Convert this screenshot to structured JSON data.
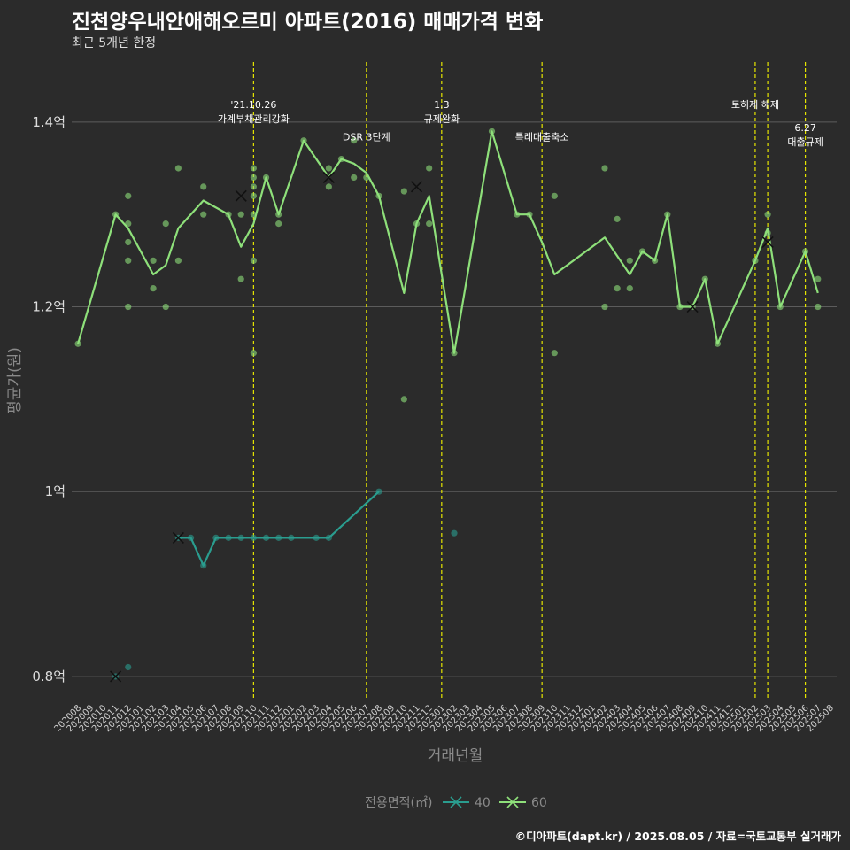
{
  "header": {
    "title": "진천양우내안애해오르미 아파트(2016) 매매가격 변화",
    "subtitle": "최근 5개년 한정"
  },
  "footer": {
    "caption": "©디아파트(dapt.kr) / 2025.08.05 / 자료=국토교통부 실거래가"
  },
  "chart_data": {
    "type": "line",
    "xlabel": "거래년월",
    "ylabel": "평균가(원)",
    "ylim": [
      0.775,
      1.465
    ],
    "yticks": [
      {
        "value": 0.8,
        "label": "0.8억"
      },
      {
        "value": 1.0,
        "label": "1억"
      },
      {
        "value": 1.2,
        "label": "1.2억"
      },
      {
        "value": 1.4,
        "label": "1.4억"
      }
    ],
    "x_categories": [
      "202008",
      "202009",
      "202010",
      "202011",
      "202012",
      "202101",
      "202102",
      "202103",
      "202104",
      "202105",
      "202106",
      "202107",
      "202108",
      "202109",
      "202110",
      "202111",
      "202112",
      "202201",
      "202202",
      "202203",
      "202204",
      "202205",
      "202206",
      "202207",
      "202208",
      "202209",
      "202210",
      "202211",
      "202212",
      "202301",
      "202302",
      "202303",
      "202304",
      "202305",
      "202306",
      "202307",
      "202308",
      "202309",
      "202310",
      "202311",
      "202312",
      "202401",
      "202402",
      "202403",
      "202404",
      "202405",
      "202406",
      "202407",
      "202408",
      "202409",
      "202410",
      "202411",
      "202412",
      "202501",
      "202502",
      "202503",
      "202504",
      "202505",
      "202506",
      "202507",
      "202508"
    ],
    "legend": {
      "title": "전용면적(㎡)",
      "position": "bottom"
    },
    "series": [
      {
        "name": "40",
        "color": "#2a9d8f",
        "line": [
          [
            "202104",
            0.95
          ],
          [
            "202105",
            0.95
          ],
          [
            "202106",
            0.92
          ],
          [
            "202107",
            0.95
          ],
          [
            "202108",
            0.95
          ],
          [
            "202109",
            0.95
          ],
          [
            "202110",
            0.95
          ],
          [
            "202111",
            0.95
          ],
          [
            "202112",
            0.95
          ],
          [
            "202201",
            0.95
          ],
          [
            "202203",
            0.95
          ],
          [
            "202204",
            0.95
          ],
          [
            "202208",
            1.0
          ]
        ],
        "points": [
          [
            "202011",
            0.8
          ],
          [
            "202012",
            0.81
          ],
          [
            "202104",
            0.95
          ],
          [
            "202105",
            0.95
          ],
          [
            "202106",
            0.92
          ],
          [
            "202107",
            0.95
          ],
          [
            "202108",
            0.95
          ],
          [
            "202109",
            0.95
          ],
          [
            "202110",
            0.95
          ],
          [
            "202111",
            0.95
          ],
          [
            "202112",
            0.95
          ],
          [
            "202201",
            0.95
          ],
          [
            "202203",
            0.95
          ],
          [
            "202204",
            0.95
          ],
          [
            "202208",
            1.0
          ],
          [
            "202302",
            0.955
          ]
        ],
        "crosses": [
          [
            "202011",
            0.8
          ],
          [
            "202104",
            0.95
          ]
        ]
      },
      {
        "name": "60",
        "color": "#8ee07a",
        "line": [
          [
            "202008",
            1.16
          ],
          [
            "202011",
            1.3
          ],
          [
            "202012",
            1.285
          ],
          [
            "202102",
            1.235
          ],
          [
            "202103",
            1.245
          ],
          [
            "202104",
            1.285
          ],
          [
            "202106",
            1.315
          ],
          [
            "202108",
            1.3
          ],
          [
            "202109",
            1.265
          ],
          [
            "202110",
            1.29
          ],
          [
            "202111",
            1.34
          ],
          [
            "202112",
            1.3
          ],
          [
            "202202",
            1.38
          ],
          [
            "202204",
            1.34
          ],
          [
            "202205",
            1.36
          ],
          [
            "202206",
            1.355
          ],
          [
            "202207",
            1.345
          ],
          [
            "202208",
            1.32
          ],
          [
            "202210",
            1.215
          ],
          [
            "202211",
            1.29
          ],
          [
            "202212",
            1.32
          ],
          [
            "202302",
            1.15
          ],
          [
            "202305",
            1.39
          ],
          [
            "202307",
            1.3
          ],
          [
            "202308",
            1.3
          ],
          [
            "202309",
            1.27
          ],
          [
            "202310",
            1.235
          ],
          [
            "202402",
            1.275
          ],
          [
            "202404",
            1.235
          ],
          [
            "202405",
            1.26
          ],
          [
            "202406",
            1.25
          ],
          [
            "202407",
            1.3
          ],
          [
            "202408",
            1.2
          ],
          [
            "202409",
            1.2
          ],
          [
            "202410",
            1.23
          ],
          [
            "202411",
            1.16
          ],
          [
            "202502",
            1.25
          ],
          [
            "202503",
            1.285
          ],
          [
            "202504",
            1.2
          ],
          [
            "202506",
            1.26
          ],
          [
            "202507",
            1.215
          ]
        ],
        "points": [
          [
            "202008",
            1.16
          ],
          [
            "202011",
            1.3
          ],
          [
            "202012",
            1.32
          ],
          [
            "202012",
            1.29
          ],
          [
            "202012",
            1.27
          ],
          [
            "202012",
            1.25
          ],
          [
            "202012",
            1.2
          ],
          [
            "202102",
            1.25
          ],
          [
            "202102",
            1.22
          ],
          [
            "202103",
            1.29
          ],
          [
            "202103",
            1.2
          ],
          [
            "202104",
            1.35
          ],
          [
            "202104",
            1.25
          ],
          [
            "202106",
            1.33
          ],
          [
            "202106",
            1.3
          ],
          [
            "202108",
            1.3
          ],
          [
            "202109",
            1.3
          ],
          [
            "202109",
            1.23
          ],
          [
            "202110",
            1.35
          ],
          [
            "202110",
            1.34
          ],
          [
            "202110",
            1.33
          ],
          [
            "202110",
            1.32
          ],
          [
            "202110",
            1.3
          ],
          [
            "202110",
            1.25
          ],
          [
            "202110",
            1.15
          ],
          [
            "202111",
            1.34
          ],
          [
            "202112",
            1.3
          ],
          [
            "202112",
            1.29
          ],
          [
            "202202",
            1.38
          ],
          [
            "202204",
            1.35
          ],
          [
            "202204",
            1.33
          ],
          [
            "202205",
            1.36
          ],
          [
            "202206",
            1.38
          ],
          [
            "202206",
            1.34
          ],
          [
            "202207",
            1.34
          ],
          [
            "202208",
            1.32
          ],
          [
            "202210",
            1.325
          ],
          [
            "202210",
            1.1
          ],
          [
            "202211",
            1.29
          ],
          [
            "202212",
            1.35
          ],
          [
            "202212",
            1.29
          ],
          [
            "202302",
            1.15
          ],
          [
            "202305",
            1.39
          ],
          [
            "202307",
            1.3
          ],
          [
            "202308",
            1.3
          ],
          [
            "202310",
            1.32
          ],
          [
            "202310",
            1.15
          ],
          [
            "202402",
            1.35
          ],
          [
            "202402",
            1.2
          ],
          [
            "202403",
            1.295
          ],
          [
            "202403",
            1.22
          ],
          [
            "202404",
            1.25
          ],
          [
            "202404",
            1.22
          ],
          [
            "202405",
            1.26
          ],
          [
            "202406",
            1.25
          ],
          [
            "202407",
            1.3
          ],
          [
            "202408",
            1.2
          ],
          [
            "202409",
            1.2
          ],
          [
            "202410",
            1.23
          ],
          [
            "202411",
            1.16
          ],
          [
            "202502",
            1.25
          ],
          [
            "202503",
            1.3
          ],
          [
            "202503",
            1.28
          ],
          [
            "202504",
            1.2
          ],
          [
            "202506",
            1.26
          ],
          [
            "202507",
            1.23
          ],
          [
            "202507",
            1.2
          ]
        ],
        "crosses": [
          [
            "202109",
            1.32
          ],
          [
            "202204",
            1.34
          ],
          [
            "202211",
            1.33
          ],
          [
            "202409",
            1.2
          ],
          [
            "202503",
            1.27
          ]
        ]
      }
    ],
    "annotations": [
      {
        "x": "202110",
        "lines": [
          "'21.10.26",
          "가계부채관리강화"
        ],
        "y_value": 1.4
      },
      {
        "x": "202207",
        "lines": [
          "DSR 3단계"
        ],
        "y_value": 1.38
      },
      {
        "x": "202301",
        "lines": [
          "1.3",
          "규제완화"
        ],
        "y_value": 1.4
      },
      {
        "x": "202309",
        "lines": [
          "특례대출축소"
        ],
        "y_value": 1.38
      },
      {
        "x": "202502",
        "lines": [
          "토허제 해제"
        ],
        "y_value": 1.415
      },
      {
        "x": "202503",
        "lines": [],
        "y_value": null
      },
      {
        "x": "202506",
        "lines": [
          "6.27",
          "대출규제"
        ],
        "y_value": 1.375
      }
    ],
    "grid": true,
    "vline_color": "#e6e600"
  }
}
